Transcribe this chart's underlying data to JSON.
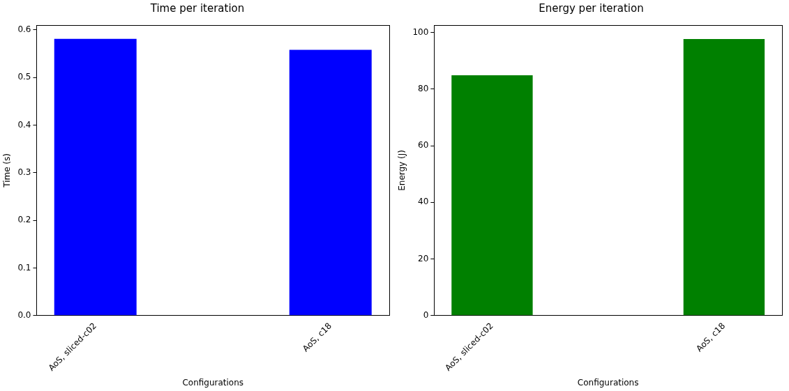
{
  "chart_data": [
    {
      "type": "bar",
      "title": "Time per iteration",
      "xlabel": "Configurations",
      "ylabel": "Time (s)",
      "categories": [
        "AoS, sliced-c02",
        "AoS, c18"
      ],
      "values": [
        0.581,
        0.558
      ],
      "color": "#0000ff",
      "ylim": [
        0,
        0.61
      ],
      "yticks": [
        {
          "value": 0,
          "label": "0.0"
        },
        0.1,
        0.2,
        0.3,
        0.4,
        0.5,
        0.6
      ],
      "grid": false,
      "legend": false
    },
    {
      "type": "bar",
      "title": "Energy per iteration",
      "xlabel": "Configurations",
      "ylabel": "Energy (J)",
      "categories": [
        "AoS, sliced-c02",
        "AoS, c18"
      ],
      "values": [
        84.9,
        97.7
      ],
      "color": "#008000",
      "ylim": [
        0,
        102.6
      ],
      "yticks": [
        0,
        20,
        40,
        60,
        80,
        100
      ],
      "grid": false,
      "legend": false
    }
  ]
}
